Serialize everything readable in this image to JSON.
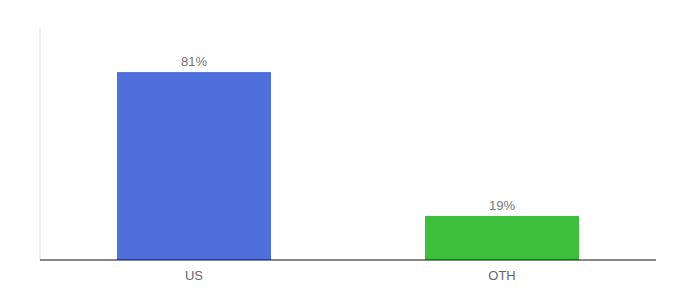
{
  "chart_data": {
    "type": "bar",
    "categories": [
      "US",
      "OTH"
    ],
    "values": [
      81,
      19
    ],
    "value_labels": [
      "81%",
      "19%"
    ],
    "colors": [
      "#4f6fdb",
      "#3dbf3d"
    ],
    "ylim": [
      0,
      100
    ],
    "grid": false,
    "data_labels": true,
    "tick_labels": "x"
  }
}
